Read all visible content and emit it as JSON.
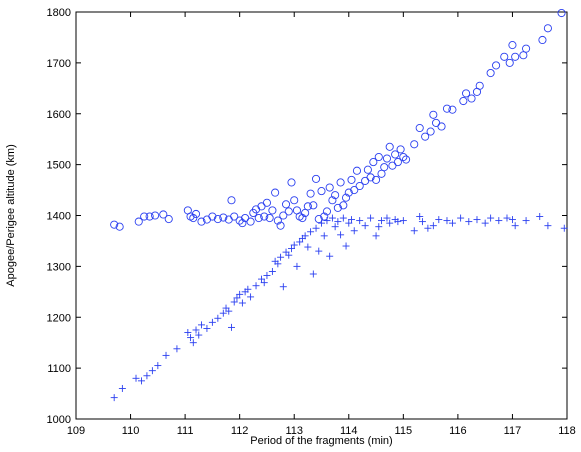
{
  "chart_data": {
    "type": "scatter",
    "title": "",
    "xlabel": "Period of the fragments (min)",
    "ylabel": "Apogee/Perigee altitude (km)",
    "xlim": [
      109,
      118
    ],
    "ylim": [
      1000,
      1800
    ],
    "xticks": [
      109,
      110,
      111,
      112,
      113,
      114,
      115,
      116,
      117,
      118
    ],
    "yticks": [
      1000,
      1100,
      1200,
      1300,
      1400,
      1500,
      1600,
      1700,
      1800
    ],
    "grid": false,
    "colors": {
      "series": "#2a3ff0",
      "axis": "#000000"
    },
    "series": [
      {
        "marker": "circle",
        "points": [
          [
            109.7,
            1382
          ],
          [
            109.8,
            1378
          ],
          [
            110.15,
            1388
          ],
          [
            110.25,
            1398
          ],
          [
            110.35,
            1398
          ],
          [
            110.45,
            1400
          ],
          [
            110.6,
            1402
          ],
          [
            110.7,
            1393
          ],
          [
            111.05,
            1410
          ],
          [
            111.1,
            1398
          ],
          [
            111.15,
            1395
          ],
          [
            111.2,
            1403
          ],
          [
            111.3,
            1388
          ],
          [
            111.4,
            1392
          ],
          [
            111.5,
            1398
          ],
          [
            111.6,
            1393
          ],
          [
            111.7,
            1396
          ],
          [
            111.8,
            1392
          ],
          [
            111.85,
            1430
          ],
          [
            111.9,
            1398
          ],
          [
            112.0,
            1390
          ],
          [
            112.05,
            1385
          ],
          [
            112.1,
            1395
          ],
          [
            112.2,
            1388
          ],
          [
            112.25,
            1405
          ],
          [
            112.3,
            1412
          ],
          [
            112.35,
            1395
          ],
          [
            112.4,
            1418
          ],
          [
            112.45,
            1398
          ],
          [
            112.5,
            1425
          ],
          [
            112.55,
            1395
          ],
          [
            112.6,
            1410
          ],
          [
            112.65,
            1445
          ],
          [
            112.7,
            1390
          ],
          [
            112.75,
            1380
          ],
          [
            112.8,
            1400
          ],
          [
            112.85,
            1422
          ],
          [
            112.9,
            1408
          ],
          [
            112.95,
            1465
          ],
          [
            113.0,
            1430
          ],
          [
            113.05,
            1410
          ],
          [
            113.1,
            1398
          ],
          [
            113.15,
            1395
          ],
          [
            113.2,
            1405
          ],
          [
            113.25,
            1418
          ],
          [
            113.3,
            1443
          ],
          [
            113.35,
            1420
          ],
          [
            113.4,
            1472
          ],
          [
            113.45,
            1393
          ],
          [
            113.5,
            1448
          ],
          [
            113.55,
            1398
          ],
          [
            113.6,
            1408
          ],
          [
            113.65,
            1455
          ],
          [
            113.7,
            1430
          ],
          [
            113.75,
            1440
          ],
          [
            113.8,
            1415
          ],
          [
            113.85,
            1465
          ],
          [
            113.9,
            1420
          ],
          [
            113.95,
            1435
          ],
          [
            114.0,
            1445
          ],
          [
            114.05,
            1470
          ],
          [
            114.1,
            1450
          ],
          [
            114.15,
            1488
          ],
          [
            114.2,
            1458
          ],
          [
            114.3,
            1468
          ],
          [
            114.35,
            1490
          ],
          [
            114.4,
            1475
          ],
          [
            114.45,
            1505
          ],
          [
            114.5,
            1470
          ],
          [
            114.55,
            1515
          ],
          [
            114.6,
            1482
          ],
          [
            114.65,
            1495
          ],
          [
            114.7,
            1512
          ],
          [
            114.75,
            1535
          ],
          [
            114.8,
            1498
          ],
          [
            114.85,
            1520
          ],
          [
            114.9,
            1505
          ],
          [
            114.95,
            1530
          ],
          [
            115.0,
            1515
          ],
          [
            115.05,
            1510
          ],
          [
            115.2,
            1540
          ],
          [
            115.3,
            1572
          ],
          [
            115.4,
            1555
          ],
          [
            115.5,
            1565
          ],
          [
            115.55,
            1598
          ],
          [
            115.6,
            1582
          ],
          [
            115.7,
            1575
          ],
          [
            115.8,
            1610
          ],
          [
            115.9,
            1608
          ],
          [
            116.1,
            1625
          ],
          [
            116.15,
            1640
          ],
          [
            116.25,
            1630
          ],
          [
            116.35,
            1643
          ],
          [
            116.4,
            1655
          ],
          [
            116.6,
            1680
          ],
          [
            116.7,
            1695
          ],
          [
            116.85,
            1712
          ],
          [
            116.95,
            1700
          ],
          [
            117.0,
            1735
          ],
          [
            117.05,
            1712
          ],
          [
            117.2,
            1715
          ],
          [
            117.25,
            1728
          ],
          [
            117.55,
            1745
          ],
          [
            117.65,
            1768
          ],
          [
            117.9,
            1798
          ]
        ]
      },
      {
        "marker": "plus",
        "points": [
          [
            109.7,
            1042
          ],
          [
            109.85,
            1060
          ],
          [
            110.1,
            1080
          ],
          [
            110.2,
            1075
          ],
          [
            110.3,
            1085
          ],
          [
            110.4,
            1095
          ],
          [
            110.5,
            1105
          ],
          [
            110.65,
            1125
          ],
          [
            110.85,
            1138
          ],
          [
            111.05,
            1170
          ],
          [
            111.1,
            1160
          ],
          [
            111.15,
            1150
          ],
          [
            111.2,
            1175
          ],
          [
            111.25,
            1165
          ],
          [
            111.3,
            1185
          ],
          [
            111.4,
            1178
          ],
          [
            111.5,
            1190
          ],
          [
            111.6,
            1198
          ],
          [
            111.7,
            1208
          ],
          [
            111.75,
            1218
          ],
          [
            111.8,
            1212
          ],
          [
            111.85,
            1180
          ],
          [
            111.9,
            1230
          ],
          [
            111.95,
            1238
          ],
          [
            112.0,
            1245
          ],
          [
            112.05,
            1228
          ],
          [
            112.1,
            1250
          ],
          [
            112.15,
            1255
          ],
          [
            112.2,
            1240
          ],
          [
            112.3,
            1262
          ],
          [
            112.4,
            1275
          ],
          [
            112.45,
            1268
          ],
          [
            112.5,
            1282
          ],
          [
            112.6,
            1290
          ],
          [
            112.65,
            1310
          ],
          [
            112.7,
            1305
          ],
          [
            112.75,
            1318
          ],
          [
            112.8,
            1260
          ],
          [
            112.85,
            1328
          ],
          [
            112.9,
            1322
          ],
          [
            112.95,
            1335
          ],
          [
            113.0,
            1342
          ],
          [
            113.05,
            1300
          ],
          [
            113.1,
            1348
          ],
          [
            113.15,
            1355
          ],
          [
            113.2,
            1360
          ],
          [
            113.25,
            1338
          ],
          [
            113.3,
            1368
          ],
          [
            113.35,
            1285
          ],
          [
            113.4,
            1375
          ],
          [
            113.45,
            1330
          ],
          [
            113.5,
            1385
          ],
          [
            113.55,
            1360
          ],
          [
            113.6,
            1390
          ],
          [
            113.65,
            1320
          ],
          [
            113.7,
            1395
          ],
          [
            113.75,
            1378
          ],
          [
            113.8,
            1388
          ],
          [
            113.85,
            1362
          ],
          [
            113.9,
            1395
          ],
          [
            113.95,
            1340
          ],
          [
            114.0,
            1385
          ],
          [
            114.05,
            1392
          ],
          [
            114.1,
            1370
          ],
          [
            114.2,
            1390
          ],
          [
            114.3,
            1380
          ],
          [
            114.4,
            1395
          ],
          [
            114.5,
            1360
          ],
          [
            114.55,
            1378
          ],
          [
            114.6,
            1390
          ],
          [
            114.7,
            1395
          ],
          [
            114.75,
            1385
          ],
          [
            114.85,
            1392
          ],
          [
            114.9,
            1388
          ],
          [
            115.0,
            1390
          ],
          [
            115.2,
            1370
          ],
          [
            115.3,
            1398
          ],
          [
            115.35,
            1388
          ],
          [
            115.45,
            1375
          ],
          [
            115.55,
            1380
          ],
          [
            115.65,
            1392
          ],
          [
            115.8,
            1390
          ],
          [
            115.9,
            1385
          ],
          [
            116.05,
            1395
          ],
          [
            116.2,
            1388
          ],
          [
            116.35,
            1392
          ],
          [
            116.5,
            1385
          ],
          [
            116.6,
            1395
          ],
          [
            116.75,
            1390
          ],
          [
            116.9,
            1395
          ],
          [
            117.0,
            1392
          ],
          [
            117.05,
            1380
          ],
          [
            117.25,
            1390
          ],
          [
            117.5,
            1398
          ],
          [
            117.65,
            1380
          ],
          [
            117.95,
            1375
          ]
        ]
      }
    ]
  }
}
